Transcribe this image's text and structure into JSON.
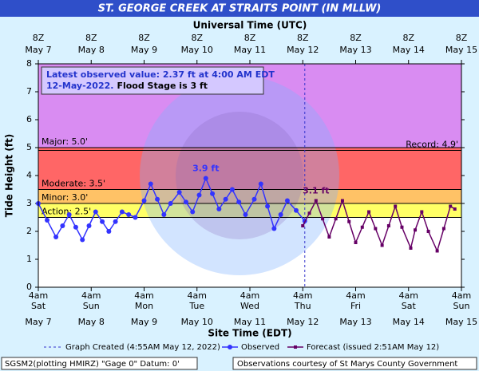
{
  "chart_data": {
    "type": "line",
    "title": "ST. GEORGE CREEK AT STRAITS POINT (IN MLLW)",
    "top_axis_label": "Universal Time (UTC)",
    "x_label": "Site Time (EDT)",
    "y_label": "Tide Height (ft)",
    "xlim": [
      "2022-05-07T04:00",
      "2022-05-15T04:00"
    ],
    "ylim": [
      0,
      8
    ],
    "yticks": [
      0,
      1,
      2,
      3,
      4,
      5,
      6,
      7,
      8
    ],
    "xticks": [
      {
        "value": "2022-05-07T04:00",
        "label": [
          "4am",
          "Sat",
          "May 7"
        ]
      },
      {
        "value": "2022-05-08T04:00",
        "label": [
          "4am",
          "Sun",
          "May 8"
        ]
      },
      {
        "value": "2022-05-09T04:00",
        "label": [
          "4am",
          "Mon",
          "May 9"
        ]
      },
      {
        "value": "2022-05-10T04:00",
        "label": [
          "4am",
          "Tue",
          "May 10"
        ]
      },
      {
        "value": "2022-05-11T04:00",
        "label": [
          "4am",
          "Wed",
          "May 11"
        ]
      },
      {
        "value": "2022-05-12T04:00",
        "label": [
          "4am",
          "Thu",
          "May 12"
        ]
      },
      {
        "value": "2022-05-13T04:00",
        "label": [
          "4am",
          "Fri",
          "May 13"
        ]
      },
      {
        "value": "2022-05-14T04:00",
        "label": [
          "4am",
          "Sat",
          "May 14"
        ]
      },
      {
        "value": "2022-05-15T04:00",
        "label": [
          "4am",
          "Sun",
          "May 15"
        ]
      }
    ],
    "x2ticks": [
      {
        "value": "2022-05-07T04:00",
        "label": [
          "8Z",
          "May  7"
        ]
      },
      {
        "value": "2022-05-08T04:00",
        "label": [
          "8Z",
          "May  8"
        ]
      },
      {
        "value": "2022-05-09T04:00",
        "label": [
          "8Z",
          "May  9"
        ]
      },
      {
        "value": "2022-05-10T04:00",
        "label": [
          "8Z",
          "May 10"
        ]
      },
      {
        "value": "2022-05-11T04:00",
        "label": [
          "8Z",
          "May 11"
        ]
      },
      {
        "value": "2022-05-12T04:00",
        "label": [
          "8Z",
          "May 12"
        ]
      },
      {
        "value": "2022-05-13T04:00",
        "label": [
          "8Z",
          "May 13"
        ]
      },
      {
        "value": "2022-05-14T04:00",
        "label": [
          "8Z",
          "May 14"
        ]
      },
      {
        "value": "2022-05-15T04:00",
        "label": [
          "8Z",
          "May 15"
        ]
      }
    ],
    "flood_categories": [
      {
        "label": "Action: 2.5'",
        "value": 2.5,
        "color": "#ffff66"
      },
      {
        "label": "Minor: 3.0'",
        "value": 3.0,
        "color": "#ffc266"
      },
      {
        "label": "Moderate: 3.5'",
        "value": 3.5,
        "color": "#ff6666"
      },
      {
        "label": "Major: 5.0'",
        "value": 5.0,
        "color": "#d98cf2"
      }
    ],
    "record": {
      "label": "Record: 4.9'",
      "value": 4.9
    },
    "graph_created": {
      "x": "2022-05-12T04:55",
      "label": "Graph Created (4:55AM May 12, 2022)"
    },
    "info_box": {
      "line1": "Latest observed value: 2.37 ft at 4:00 AM EDT",
      "line2": "12-May-2022.",
      "flood_stage": "Flood Stage is 3 ft"
    },
    "annotations": [
      {
        "x": "2022-05-10T08:00",
        "value": 3.9,
        "label": "3.9 ft",
        "color": "#3333ff"
      },
      {
        "x": "2022-05-12T10:00",
        "value": 3.1,
        "label": "3.1 ft",
        "color": "#660066"
      }
    ],
    "series": [
      {
        "name": "Observed",
        "color": "#3333ff",
        "marker": "circle",
        "x": [
          "2022-05-07T04:00",
          "2022-05-07T08:00",
          "2022-05-07T12:00",
          "2022-05-07T15:00",
          "2022-05-07T18:00",
          "2022-05-07T21:00",
          "2022-05-08T00:00",
          "2022-05-08T03:00",
          "2022-05-08T06:00",
          "2022-05-08T09:00",
          "2022-05-08T12:00",
          "2022-05-08T15:00",
          "2022-05-08T18:00",
          "2022-05-08T21:00",
          "2022-05-09T00:00",
          "2022-05-09T04:00",
          "2022-05-09T07:00",
          "2022-05-09T10:00",
          "2022-05-09T13:00",
          "2022-05-09T16:00",
          "2022-05-09T20:00",
          "2022-05-09T23:00",
          "2022-05-10T02:00",
          "2022-05-10T05:00",
          "2022-05-10T08:00",
          "2022-05-10T11:00",
          "2022-05-10T14:00",
          "2022-05-10T17:00",
          "2022-05-10T20:00",
          "2022-05-10T23:00",
          "2022-05-11T02:00",
          "2022-05-11T06:00",
          "2022-05-11T09:00",
          "2022-05-11T12:00",
          "2022-05-11T15:00",
          "2022-05-11T18:00",
          "2022-05-11T21:00",
          "2022-05-12T01:00",
          "2022-05-12T04:55"
        ],
        "values": [
          3.0,
          2.4,
          1.8,
          2.2,
          2.6,
          2.15,
          1.7,
          2.2,
          2.7,
          2.35,
          2.0,
          2.35,
          2.7,
          2.6,
          2.5,
          3.1,
          3.7,
          3.15,
          2.6,
          3.0,
          3.4,
          3.05,
          2.7,
          3.3,
          3.9,
          3.35,
          2.8,
          3.15,
          3.5,
          3.05,
          2.6,
          3.15,
          3.7,
          2.9,
          2.1,
          2.6,
          3.1,
          2.75,
          2.37
        ]
      },
      {
        "name": "Forecast (issued 2:51AM May 12)",
        "color": "#660066",
        "marker": "square",
        "x": [
          "2022-05-12T04:00",
          "2022-05-12T07:00",
          "2022-05-12T10:00",
          "2022-05-12T13:00",
          "2022-05-12T16:00",
          "2022-05-12T19:00",
          "2022-05-12T22:00",
          "2022-05-13T01:00",
          "2022-05-13T04:00",
          "2022-05-13T07:00",
          "2022-05-13T10:00",
          "2022-05-13T13:00",
          "2022-05-13T16:00",
          "2022-05-13T19:00",
          "2022-05-13T22:00",
          "2022-05-14T01:00",
          "2022-05-14T05:00",
          "2022-05-14T07:00",
          "2022-05-14T10:00",
          "2022-05-14T13:00",
          "2022-05-14T17:00",
          "2022-05-14T20:00",
          "2022-05-14T23:00",
          "2022-05-15T01:00"
        ],
        "values": [
          2.2,
          2.65,
          3.1,
          2.45,
          1.8,
          2.45,
          3.1,
          2.35,
          1.6,
          2.15,
          2.7,
          2.1,
          1.5,
          2.2,
          2.9,
          2.15,
          1.4,
          2.05,
          2.7,
          2.0,
          1.3,
          2.1,
          2.9,
          2.8
        ]
      }
    ],
    "footer": {
      "left": "SGSM2(plotting HMIRZ) \"Gage 0\" Datum: 0'",
      "right": "Observations courtesy of St Marys County Government"
    }
  }
}
